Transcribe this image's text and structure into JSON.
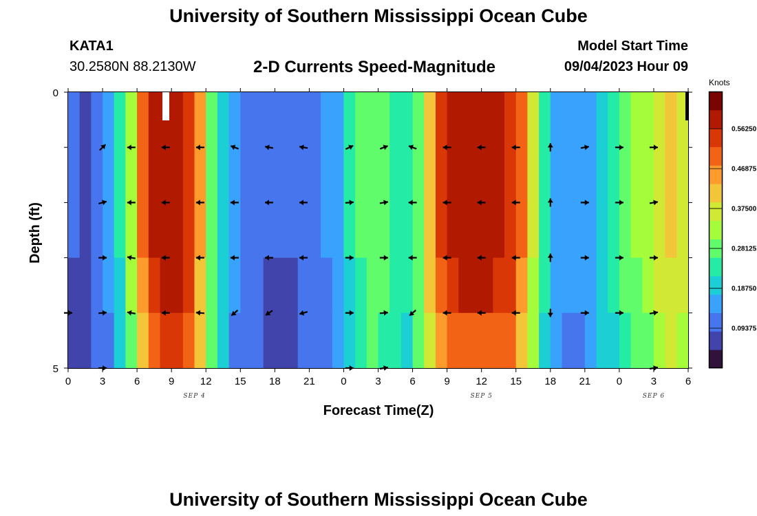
{
  "header": {
    "title": "University of Southern Mississippi Ocean Cube",
    "station_id": "KATA1",
    "coords": "30.2580N  88.2130W",
    "chart_title": "2-D Currents Speed-Magnitude",
    "model_label": "Model Start Time",
    "model_time": "09/04/2023 Hour 09"
  },
  "footer": {
    "title": "University of Southern Mississippi Ocean Cube"
  },
  "chart_data": {
    "type": "heatmap",
    "title": "2-D Currents Speed-Magnitude",
    "xlabel": "Forecast Time(Z)",
    "ylabel": "Depth (ft)",
    "xlim": [
      0,
      54
    ],
    "ylim": [
      0,
      5
    ],
    "x_ticks": [
      "0",
      "3",
      "6",
      "9",
      "12",
      "15",
      "18",
      "21",
      "0",
      "3",
      "6",
      "9",
      "12",
      "15",
      "18",
      "21",
      "0",
      "3",
      "6"
    ],
    "y_ticks": [
      "0",
      "5"
    ],
    "date_labels": [
      {
        "label": "SEP 4",
        "hour": 11
      },
      {
        "label": "SEP 5",
        "hour": 36
      },
      {
        "label": "SEP 6",
        "hour": 51
      }
    ],
    "colorbar": {
      "label": "Knots",
      "min": 0,
      "max": 0.65,
      "ticks": [
        "0.56250",
        "0.46875",
        "0.37500",
        "0.28125",
        "0.18750",
        "0.09375"
      ],
      "colors": [
        "#30123b",
        "#4145ab",
        "#4675ed",
        "#39a2fc",
        "#1bcfd4",
        "#24eca6",
        "#61fc6c",
        "#a4fc3b",
        "#d1e834",
        "#f3c63a",
        "#fe9b2d",
        "#f36315",
        "#d93806",
        "#b11901",
        "#7a0403"
      ]
    },
    "speed_profile": {
      "hours": [
        0,
        1,
        2,
        3,
        4,
        5,
        6,
        7,
        8,
        9,
        10,
        11,
        12,
        13,
        14,
        15,
        16,
        17,
        18,
        19,
        20,
        21,
        22,
        23,
        24,
        25,
        26,
        27,
        28,
        29,
        30,
        31,
        32,
        33,
        34,
        35,
        36,
        37,
        38,
        39,
        40,
        41,
        42,
        43,
        44,
        45,
        46,
        47,
        48,
        49,
        50,
        51,
        52,
        53,
        54
      ],
      "values": [
        0.09,
        0.08,
        0.1,
        0.14,
        0.22,
        0.34,
        0.48,
        0.57,
        0.6,
        0.6,
        0.56,
        0.45,
        0.3,
        0.2,
        0.14,
        0.11,
        0.1,
        0.09,
        0.09,
        0.09,
        0.1,
        0.11,
        0.13,
        0.17,
        0.22,
        0.27,
        0.3,
        0.29,
        0.25,
        0.24,
        0.3,
        0.42,
        0.53,
        0.58,
        0.59,
        0.59,
        0.59,
        0.58,
        0.55,
        0.48,
        0.36,
        0.24,
        0.17,
        0.14,
        0.14,
        0.16,
        0.2,
        0.24,
        0.28,
        0.31,
        0.34,
        0.37,
        0.4,
        0.38,
        0.3
      ],
      "depth_factor": [
        1.0,
        1.0,
        1.0,
        0.96,
        0.88
      ]
    },
    "vectors": [
      {
        "row": 1,
        "dirs": [
          null,
          45,
          180,
          180,
          180,
          160,
          170,
          170,
          25,
          20,
          160,
          180,
          180,
          180,
          90,
          10,
          0,
          0
        ]
      },
      {
        "row": 2,
        "dirs": [
          null,
          15,
          180,
          180,
          180,
          180,
          180,
          180,
          5,
          10,
          180,
          180,
          180,
          180,
          90,
          0,
          0,
          10
        ]
      },
      {
        "row": 3,
        "dirs": [
          null,
          0,
          170,
          180,
          180,
          180,
          180,
          180,
          0,
          0,
          180,
          180,
          180,
          180,
          90,
          0,
          0,
          0
        ]
      },
      {
        "row": 4,
        "dirs": [
          0,
          5,
          170,
          180,
          175,
          220,
          215,
          195,
          0,
          5,
          220,
          180,
          180,
          180,
          -90,
          0,
          0,
          10
        ]
      },
      {
        "row": 5,
        "dirs": [
          null,
          0,
          null,
          null,
          null,
          null,
          null,
          null,
          0,
          10,
          null,
          null,
          null,
          null,
          null,
          null,
          null,
          10
        ]
      }
    ],
    "vector_hours": [
      0,
      3,
      5.5,
      8.5,
      11.5,
      14.5,
      17.5,
      20.5,
      24.5,
      27.5,
      30,
      33,
      36,
      39,
      42,
      45,
      48,
      51
    ]
  }
}
